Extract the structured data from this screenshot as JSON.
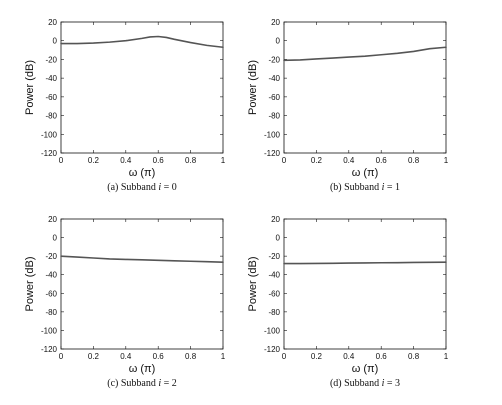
{
  "colors": {
    "line": "#555555",
    "axis": "#111111",
    "background": "#ffffff"
  },
  "chart_data": [
    {
      "type": "line",
      "caption_prefix": "(a) Subband ",
      "caption_var": "i",
      "caption_suffix": " = 0",
      "xlabel": "ω (π)",
      "ylabel": "Power (dB)",
      "xlim": [
        0,
        1
      ],
      "ylim": [
        -120,
        20
      ],
      "xticks": [
        0,
        0.2,
        0.4,
        0.6,
        0.8,
        1
      ],
      "xtick_labels": [
        "0",
        "0.2",
        "0.4",
        "0.6",
        "0.8",
        "1"
      ],
      "yticks": [
        20,
        0,
        -20,
        -40,
        -60,
        -80,
        -100,
        -120
      ],
      "ytick_labels": [
        "20",
        "0",
        "-20",
        "-40",
        "-60",
        "-80",
        "-100",
        "-120"
      ],
      "grid": false,
      "x": [
        0,
        0.1,
        0.2,
        0.3,
        0.4,
        0.5,
        0.55,
        0.6,
        0.65,
        0.7,
        0.8,
        0.9,
        1.0
      ],
      "y": [
        -3,
        -3,
        -2.5,
        -1.5,
        0,
        2.5,
        4,
        4.5,
        3.5,
        1.5,
        -2,
        -5,
        -7
      ]
    },
    {
      "type": "line",
      "caption_prefix": "(b) Subband ",
      "caption_var": "i",
      "caption_suffix": " = 1",
      "xlabel": "ω (π)",
      "ylabel": "Power (dB)",
      "xlim": [
        0,
        1
      ],
      "ylim": [
        -120,
        20
      ],
      "xticks": [
        0,
        0.2,
        0.4,
        0.6,
        0.8,
        1
      ],
      "xtick_labels": [
        "0",
        "0.2",
        "0.4",
        "0.6",
        "0.8",
        "1"
      ],
      "yticks": [
        20,
        0,
        -20,
        -40,
        -60,
        -80,
        -100,
        -120
      ],
      "ytick_labels": [
        "20",
        "0",
        "-20",
        "-40",
        "-60",
        "-80",
        "-100",
        "-120"
      ],
      "grid": false,
      "x": [
        0,
        0.1,
        0.2,
        0.3,
        0.4,
        0.5,
        0.6,
        0.7,
        0.8,
        0.9,
        1.0
      ],
      "y": [
        -21,
        -20.5,
        -19.5,
        -18.5,
        -17.5,
        -16.5,
        -15,
        -13.5,
        -11.5,
        -8.5,
        -7
      ]
    },
    {
      "type": "line",
      "caption_prefix": "(c) Subband ",
      "caption_var": "i",
      "caption_suffix": " = 2",
      "xlabel": "ω (π)",
      "ylabel": "Power (dB)",
      "xlim": [
        0,
        1
      ],
      "ylim": [
        -120,
        20
      ],
      "xticks": [
        0,
        0.2,
        0.4,
        0.6,
        0.8,
        1
      ],
      "xtick_labels": [
        "0",
        "0.2",
        "0.4",
        "0.6",
        "0.8",
        "1"
      ],
      "yticks": [
        20,
        0,
        -20,
        -40,
        -60,
        -80,
        -100,
        -120
      ],
      "ytick_labels": [
        "20",
        "0",
        "-20",
        "-40",
        "-60",
        "-80",
        "-100",
        "-120"
      ],
      "grid": false,
      "x": [
        0,
        0.1,
        0.2,
        0.3,
        0.4,
        0.5,
        0.6,
        0.7,
        0.8,
        0.9,
        1.0
      ],
      "y": [
        -20,
        -21,
        -22,
        -23,
        -23.5,
        -24,
        -24.5,
        -25,
        -25.5,
        -26,
        -26.5
      ]
    },
    {
      "type": "line",
      "caption_prefix": "(d) Subband ",
      "caption_var": "i",
      "caption_suffix": " = 3",
      "xlabel": "ω (π)",
      "ylabel": "Power (dB)",
      "xlim": [
        0,
        1
      ],
      "ylim": [
        -120,
        20
      ],
      "xticks": [
        0,
        0.2,
        0.4,
        0.6,
        0.8,
        1
      ],
      "xtick_labels": [
        "0",
        "0.2",
        "0.4",
        "0.6",
        "0.8",
        "1"
      ],
      "yticks": [
        20,
        0,
        -20,
        -40,
        -60,
        -80,
        -100,
        -120
      ],
      "ytick_labels": [
        "20",
        "0",
        "-20",
        "-40",
        "-60",
        "-80",
        "-100",
        "-120"
      ],
      "grid": false,
      "x": [
        0,
        0.1,
        0.2,
        0.3,
        0.4,
        0.5,
        0.6,
        0.7,
        0.8,
        0.9,
        1.0
      ],
      "y": [
        -28,
        -28,
        -27.8,
        -27.7,
        -27.5,
        -27.3,
        -27.1,
        -27,
        -26.8,
        -26.6,
        -26.5
      ]
    }
  ]
}
